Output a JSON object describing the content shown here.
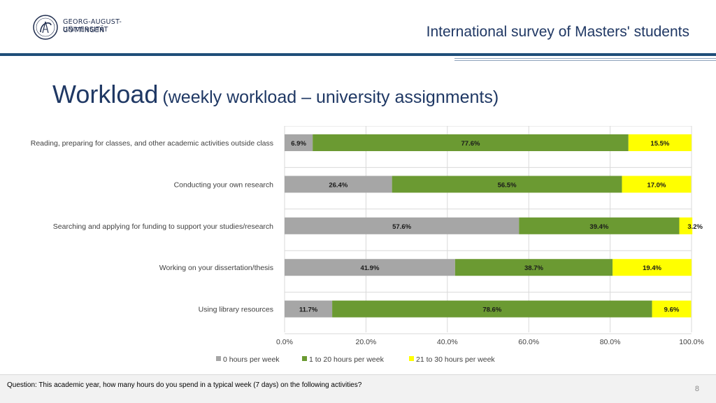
{
  "header": {
    "university_line1": "GEORG-AUGUST-UNIVERSITÄT",
    "university_line2": "GÖTTINGEN",
    "survey_title": "International survey of Masters' students"
  },
  "slide": {
    "title_main": "Workload",
    "title_sub": "(weekly workload – university assignments)"
  },
  "chart_data": {
    "type": "bar",
    "orientation": "horizontal",
    "stacked": true,
    "categories": [
      "Reading, preparing for classes, and other academic activities outside class",
      "Conducting your own research",
      "Searching and applying for funding to support your studies/research",
      "Working on your dissertation/thesis",
      "Using library resources"
    ],
    "series": [
      {
        "name": "0 hours per week",
        "color": "#a6a6a6",
        "values": [
          6.9,
          26.4,
          57.6,
          41.9,
          11.7
        ],
        "labels": [
          "6.9%",
          "26.4%",
          "57.6%",
          "41.9%",
          "11.7%"
        ]
      },
      {
        "name": "1 to 20 hours per week",
        "color": "#6b9a32",
        "values": [
          77.6,
          56.5,
          39.4,
          38.7,
          78.6
        ],
        "labels": [
          "77.6%",
          "56.5%",
          "39.4%",
          "38.7%",
          "78.6%"
        ]
      },
      {
        "name": "21 to 30 hours per week",
        "color": "#ffff00",
        "values": [
          15.5,
          17.0,
          3.2,
          19.4,
          9.6
        ],
        "labels": [
          "15.5%",
          "17.0%",
          "3.2%",
          "19.4%",
          "9.6%"
        ]
      }
    ],
    "xlim": [
      0,
      100
    ],
    "x_ticks": [
      "0.0%",
      "20.0%",
      "40.0%",
      "60.0%",
      "80.0%",
      "100.0%"
    ],
    "grid": true,
    "legend_position": "bottom"
  },
  "footer": {
    "question": "Question: This academic year, how many hours do you spend in a typical week (7 days) on the following activities?",
    "page_number": "8"
  }
}
